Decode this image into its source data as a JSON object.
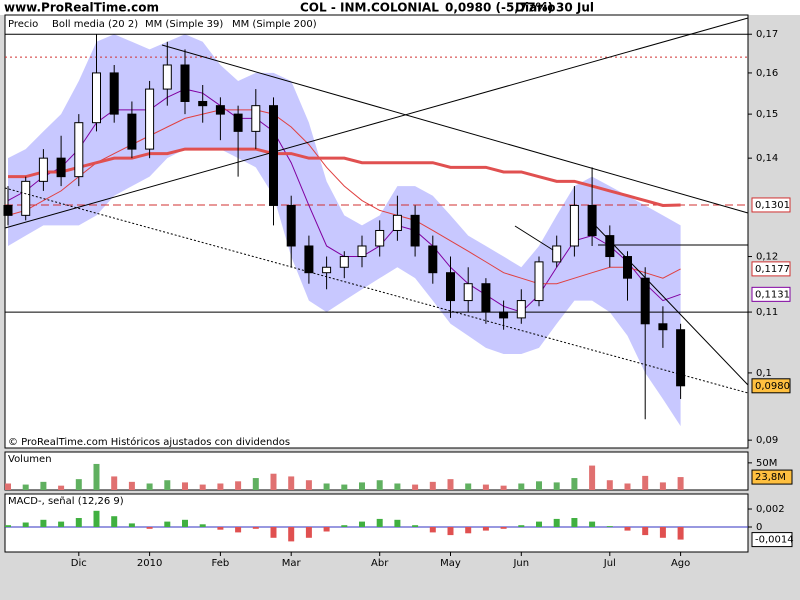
{
  "header": {
    "site": "www.ProRealTime.com",
    "instrument": "COL - INM.COLONIAL",
    "quote": "0,0980 (-5,77%)",
    "period": "Diario",
    "date": "30 Jul",
    "footer": "© ProRealTime.com Históricos ajustados con dividendos"
  },
  "chart_data": [
    {
      "type": "candlestick",
      "price_name": "Precio",
      "log_scale": true,
      "up_color": "#ffffff",
      "down_color": "#000000",
      "categories": [
        null,
        null,
        null,
        null,
        "Dic",
        null,
        null,
        null,
        "2010",
        null,
        null,
        null,
        "Feb",
        null,
        null,
        null,
        "Mar",
        null,
        null,
        null,
        null,
        "Abr",
        null,
        null,
        null,
        "May",
        null,
        null,
        null,
        "Jun",
        null,
        null,
        null,
        null,
        "Jul",
        null,
        null,
        null,
        "Ago"
      ],
      "open": [
        0.13,
        0.128,
        0.135,
        0.14,
        0.136,
        0.148,
        0.16,
        0.15,
        0.142,
        0.156,
        0.162,
        0.153,
        0.152,
        0.15,
        0.146,
        0.152,
        0.13,
        0.122,
        0.117,
        0.118,
        0.12,
        0.122,
        0.125,
        0.128,
        0.122,
        0.117,
        0.112,
        0.115,
        0.11,
        0.109,
        0.112,
        0.119,
        0.122,
        0.13,
        0.124,
        0.12,
        0.116,
        0.108,
        0.107
      ],
      "high": [
        0.134,
        0.136,
        0.142,
        0.145,
        0.15,
        0.17,
        0.162,
        0.153,
        0.158,
        0.168,
        0.166,
        0.157,
        0.154,
        0.152,
        0.156,
        0.154,
        0.132,
        0.124,
        0.12,
        0.121,
        0.124,
        0.127,
        0.132,
        0.13,
        0.124,
        0.12,
        0.118,
        0.116,
        0.112,
        0.114,
        0.12,
        0.124,
        0.134,
        0.138,
        0.126,
        0.121,
        0.118,
        0.111,
        0.108
      ],
      "low": [
        0.126,
        0.127,
        0.133,
        0.134,
        0.134,
        0.146,
        0.148,
        0.14,
        0.14,
        0.152,
        0.15,
        0.148,
        0.144,
        0.136,
        0.142,
        0.126,
        0.118,
        0.115,
        0.114,
        0.116,
        0.118,
        0.12,
        0.123,
        0.12,
        0.115,
        0.109,
        0.11,
        0.108,
        0.107,
        0.108,
        0.111,
        0.118,
        0.12,
        0.122,
        0.118,
        0.112,
        0.093,
        0.104,
        0.096
      ],
      "close": [
        0.128,
        0.135,
        0.14,
        0.136,
        0.148,
        0.16,
        0.15,
        0.142,
        0.156,
        0.162,
        0.153,
        0.152,
        0.15,
        0.146,
        0.152,
        0.13,
        0.122,
        0.117,
        0.118,
        0.12,
        0.122,
        0.125,
        0.128,
        0.122,
        0.117,
        0.112,
        0.115,
        0.11,
        0.109,
        0.112,
        0.119,
        0.122,
        0.13,
        0.124,
        0.12,
        0.116,
        0.108,
        0.107,
        0.098
      ],
      "bands": [
        {
          "color": "#c8c8ff",
          "upper": [
            0.14,
            0.142,
            0.146,
            0.15,
            0.158,
            0.168,
            0.17,
            0.168,
            0.166,
            0.168,
            0.17,
            0.168,
            0.162,
            0.158,
            0.16,
            0.16,
            0.158,
            0.148,
            0.135,
            0.128,
            0.126,
            0.128,
            0.134,
            0.134,
            0.132,
            0.128,
            0.124,
            0.122,
            0.12,
            0.118,
            0.122,
            0.128,
            0.134,
            0.136,
            0.134,
            0.132,
            0.13,
            0.128,
            0.126
          ],
          "lower": [
            0.122,
            0.124,
            0.126,
            0.126,
            0.126,
            0.128,
            0.132,
            0.134,
            0.136,
            0.14,
            0.142,
            0.142,
            0.142,
            0.14,
            0.138,
            0.132,
            0.12,
            0.112,
            0.11,
            0.112,
            0.114,
            0.116,
            0.118,
            0.116,
            0.112,
            0.108,
            0.106,
            0.104,
            0.103,
            0.103,
            0.104,
            0.108,
            0.112,
            0.112,
            0.11,
            0.106,
            0.1,
            0.096,
            0.092
          ]
        }
      ],
      "series": [
        {
          "name": "Boll media (20 2)",
          "color": "#8000a0",
          "width": 1,
          "values": [
            0.131,
            0.133,
            0.136,
            0.138,
            0.142,
            0.148,
            0.151,
            0.151,
            0.151,
            0.154,
            0.156,
            0.155,
            0.152,
            0.149,
            0.149,
            0.146,
            0.139,
            0.13,
            0.122,
            0.12,
            0.12,
            0.122,
            0.126,
            0.125,
            0.122,
            0.118,
            0.115,
            0.113,
            0.111,
            0.11,
            0.113,
            0.118,
            0.123,
            0.124,
            0.122,
            0.119,
            0.115,
            0.112,
            0.1131
          ]
        },
        {
          "name": "MM (Simple 39)",
          "color": "#e04040",
          "width": 1,
          "values": [
            0.128,
            0.129,
            0.131,
            0.133,
            0.136,
            0.139,
            0.141,
            0.143,
            0.145,
            0.147,
            0.149,
            0.15,
            0.151,
            0.151,
            0.151,
            0.15,
            0.147,
            0.143,
            0.138,
            0.134,
            0.131,
            0.129,
            0.128,
            0.127,
            0.125,
            0.123,
            0.121,
            0.119,
            0.117,
            0.116,
            0.115,
            0.115,
            0.116,
            0.117,
            0.118,
            0.118,
            0.117,
            0.116,
            0.1177
          ]
        },
        {
          "name": "MM (Simple 200)",
          "color": "#e05050",
          "width": 3,
          "values": [
            0.136,
            0.136,
            0.137,
            0.137,
            0.138,
            0.139,
            0.14,
            0.14,
            0.141,
            0.141,
            0.142,
            0.142,
            0.142,
            0.142,
            0.142,
            0.141,
            0.141,
            0.14,
            0.14,
            0.14,
            0.139,
            0.139,
            0.139,
            0.139,
            0.139,
            0.138,
            0.138,
            0.138,
            0.137,
            0.137,
            0.136,
            0.135,
            0.135,
            0.134,
            0.133,
            0.132,
            0.131,
            0.13,
            0.1301
          ]
        }
      ],
      "hlines": [
        {
          "value": 0.17,
          "style": "solid",
          "color": "#000000"
        },
        {
          "value": 0.164,
          "style": "dotted",
          "color": "#d03030"
        },
        {
          "value": 0.1301,
          "style": "dashed",
          "color": "#d03030"
        },
        {
          "value": 0.11,
          "style": "solid",
          "color": "#000000"
        }
      ],
      "price_labels": [
        {
          "value": 0.1301,
          "label": "0,1301",
          "color": "#d03030",
          "fill": "#ffffff"
        },
        {
          "value": 0.1177,
          "label": "0,1177",
          "color": "#d03030",
          "fill": "#ffffff"
        },
        {
          "value": 0.1131,
          "label": "0,1131",
          "color": "#8000a0",
          "fill": "#ffffff"
        },
        {
          "value": 0.098,
          "label": "0,0980",
          "color": "#000000",
          "fill": "#ffc040"
        }
      ],
      "ylim": [
        0.0889,
        0.1752
      ],
      "yticks": [
        {
          "value": 0.09,
          "label": "0,09"
        },
        {
          "value": 0.1,
          "label": "0,1"
        },
        {
          "value": 0.11,
          "label": "0,11"
        },
        {
          "value": 0.12,
          "label": "0,12"
        },
        {
          "value": 0.14,
          "label": "0,14"
        },
        {
          "value": 0.15,
          "label": "0,15"
        },
        {
          "value": 0.16,
          "label": "0,16"
        },
        {
          "value": 0.17,
          "label": "0,17"
        }
      ]
    },
    {
      "type": "bar",
      "title": "Volumen",
      "up_color": "#60b060",
      "down_color": "#e07070",
      "values": [
        12,
        10,
        15,
        8,
        20,
        48,
        25,
        15,
        12,
        18,
        14,
        10,
        12,
        16,
        22,
        30,
        25,
        18,
        12,
        10,
        14,
        18,
        12,
        10,
        15,
        20,
        12,
        10,
        8,
        12,
        16,
        14,
        22,
        45,
        18,
        12,
        26,
        14,
        23.8
      ],
      "value_labels_last": "23,8M",
      "ylim": [
        0,
        70
      ],
      "yticks": [
        {
          "value": 50,
          "label": "50M"
        }
      ]
    },
    {
      "type": "bar",
      "title": "MACD-, señal (12,26 9)",
      "pos_color": "#40b040",
      "neg_color": "#e05050",
      "zero_color": "#3030c0",
      "values": [
        0.0002,
        0.0005,
        0.0008,
        0.0006,
        0.001,
        0.0018,
        0.0012,
        0.0004,
        -0.0002,
        0.0006,
        0.0008,
        0.0003,
        -0.0003,
        -0.0006,
        -0.0002,
        -0.0012,
        -0.0016,
        -0.0012,
        -0.0005,
        0.0002,
        0.0006,
        0.0009,
        0.0008,
        0.0002,
        -0.0006,
        -0.0009,
        -0.0007,
        -0.0004,
        -0.0002,
        0.0002,
        0.0006,
        0.0009,
        0.001,
        0.0006,
        0.0001,
        -0.0004,
        -0.0009,
        -0.0012,
        -0.0014
      ],
      "value_labels_last": "-0,0014",
      "ylim": [
        -0.00278,
        0.00367
      ],
      "yticks": [
        0,
        {
          "value": 0.002,
          "label": "0,002"
        }
      ]
    }
  ]
}
